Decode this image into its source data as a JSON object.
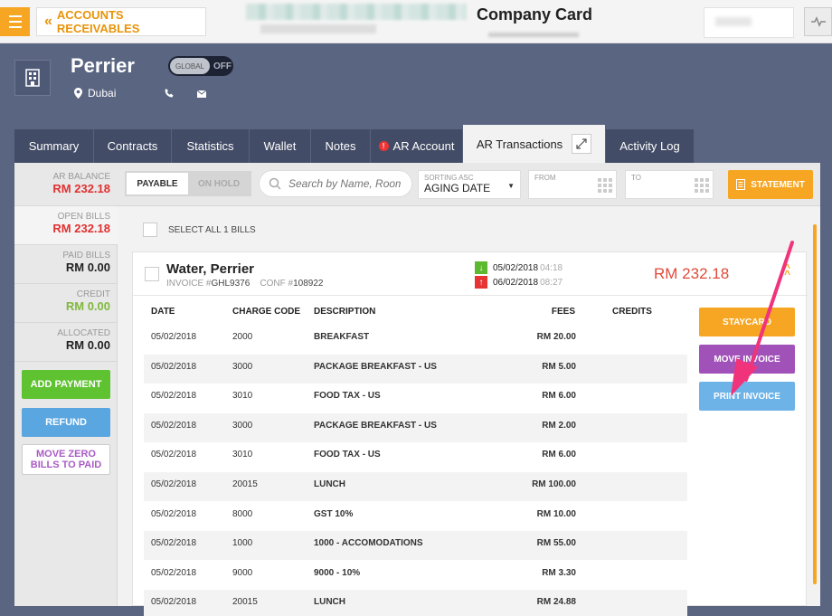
{
  "header": {
    "back_label": "ACCOUNTS RECEIVABLES",
    "title": "Company Card"
  },
  "profile": {
    "name": "Perrier",
    "location": "Dubai",
    "toggle": {
      "label": "GLOBAL",
      "state": "OFF"
    }
  },
  "tabs": [
    {
      "label": "Summary"
    },
    {
      "label": "Contracts"
    },
    {
      "label": "Statistics"
    },
    {
      "label": "Wallet"
    },
    {
      "label": "Notes"
    },
    {
      "label": "AR Account",
      "alert": "!"
    },
    {
      "label": "AR Transactions",
      "active": true
    },
    {
      "label": "Activity Log"
    }
  ],
  "balances": {
    "ar_balance": {
      "label": "AR BALANCE",
      "value": "RM 232.18"
    },
    "open_bills": {
      "label": "OPEN BILLS",
      "value": "RM 232.18"
    },
    "paid_bills": {
      "label": "PAID BILLS",
      "value": "RM 0.00"
    },
    "credit": {
      "label": "CREDIT",
      "value": "RM 0.00"
    },
    "allocated": {
      "label": "ALLOCATED",
      "value": "RM 0.00"
    }
  },
  "side_buttons": {
    "add_payment": "ADD PAYMENT",
    "refund": "REFUND",
    "move_zero_1": "MOVE ZERO",
    "move_zero_2": "BILLS TO PAID"
  },
  "filters": {
    "payable": "PAYABLE",
    "on_hold": "ON HOLD",
    "search_placeholder": "Search by Name, Room",
    "sort_caption": "SORTING ASC",
    "sort_value": "AGING DATE",
    "from_label": "FROM",
    "to_label": "TO",
    "statement": "STATEMENT"
  },
  "select_all": "SELECT ALL 1 BILLS",
  "bill": {
    "name": "Water, Perrier",
    "invoice_label": "INVOICE #",
    "invoice_no": "GHL9376",
    "conf_label": "CONF #",
    "conf_no": "108922",
    "arrival_date": "05/02/2018",
    "arrival_time": "04:18",
    "departure_date": "06/02/2018",
    "departure_time": "08:27",
    "total": "RM 232.18"
  },
  "table": {
    "headers": {
      "date": "DATE",
      "code": "CHARGE CODE",
      "desc": "DESCRIPTION",
      "fees": "FEES",
      "credits": "CREDITS"
    },
    "rows": [
      {
        "date": "05/02/2018",
        "code": "2000",
        "desc": "BREAKFAST",
        "fees": "RM 20.00"
      },
      {
        "date": "05/02/2018",
        "code": "3000",
        "desc": "PACKAGE BREAKFAST - US",
        "fees": "RM 5.00"
      },
      {
        "date": "05/02/2018",
        "code": "3010",
        "desc": "FOOD TAX - US",
        "fees": "RM 6.00"
      },
      {
        "date": "05/02/2018",
        "code": "3000",
        "desc": "PACKAGE BREAKFAST - US",
        "fees": "RM 2.00"
      },
      {
        "date": "05/02/2018",
        "code": "3010",
        "desc": "FOOD TAX - US",
        "fees": "RM 6.00"
      },
      {
        "date": "05/02/2018",
        "code": "20015",
        "desc": "LUNCH",
        "fees": "RM 100.00"
      },
      {
        "date": "05/02/2018",
        "code": "8000",
        "desc": "GST 10%",
        "fees": "RM 10.00"
      },
      {
        "date": "05/02/2018",
        "code": "1000",
        "desc": "1000 - ACCOMODATIONS",
        "fees": "RM 55.00"
      },
      {
        "date": "05/02/2018",
        "code": "9000",
        "desc": "9000 - 10%",
        "fees": "RM 3.30"
      },
      {
        "date": "05/02/2018",
        "code": "20015",
        "desc": "LUNCH",
        "fees": "RM 24.88"
      }
    ]
  },
  "actions": {
    "staycard": "STAYCARD",
    "move_invoice": "MOVE INVOICE",
    "print_invoice": "PRINT INVOICE"
  },
  "colors": {
    "accent": "#f6a623",
    "nav_bg": "#5a6582",
    "annotation_arrow": "#f0337a"
  }
}
